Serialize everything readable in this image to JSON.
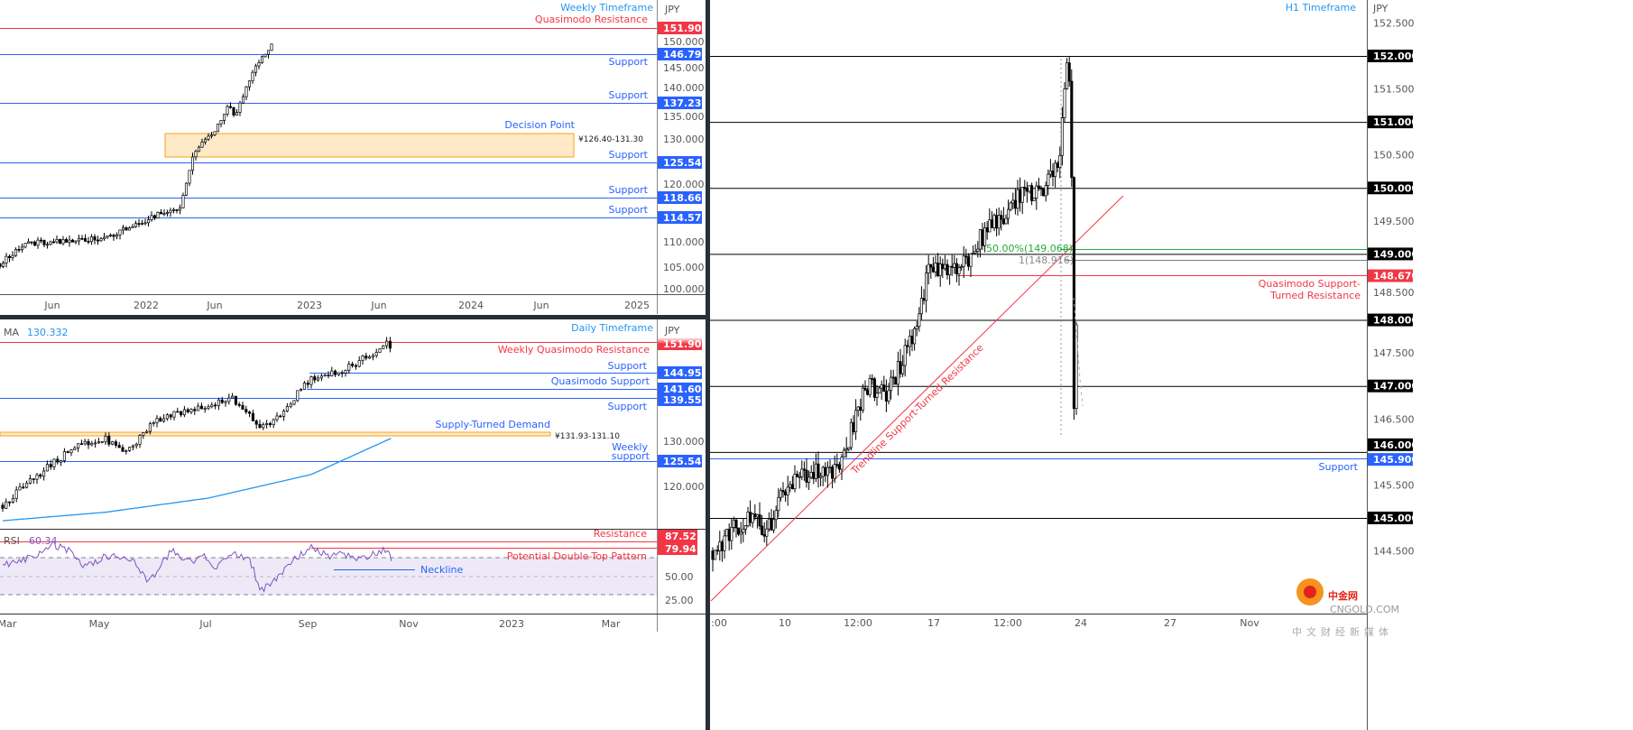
{
  "colors": {
    "support": "#2962ff",
    "resistance": "#f23645",
    "timeframe_label": "#2196f3",
    "fib": "#22ab3a",
    "ma": "#2196f3",
    "rsi": "#7e57c2",
    "zone_fill": "#ffe9c6",
    "zone_border": "#f7a21b",
    "level_black": "#000000"
  },
  "weekly": {
    "title": "Weekly Timeframe",
    "currency": "JPY",
    "annotations": {
      "quasimodo": "Quasimodo Resistance",
      "support1": "Support",
      "support2": "Support",
      "support3": "Support",
      "support4": "Support",
      "support5": "Support",
      "decision_point": "Decision Point",
      "decision_range": "¥126.40-131.30"
    },
    "levels": [
      "151.900",
      "146.790",
      "137.230",
      "125.540",
      "118.660",
      "114.570"
    ],
    "ticks": [
      "150.000",
      "145.000",
      "140.000",
      "135.000",
      "130.000",
      "120.000",
      "110.000",
      "105.000",
      "100.000"
    ],
    "dates": [
      "Jun",
      "2022",
      "Jun",
      "2023",
      "Jun",
      "2024",
      "Jun",
      "2025"
    ]
  },
  "daily": {
    "title": "Daily Timeframe",
    "currency": "JPY",
    "ma_label": "MA",
    "ma_value": "130.332",
    "annotations": {
      "weekly_qm": "Weekly Quasimodo Resistance",
      "support1": "Support",
      "qm_support": "Quasimodo Support",
      "support2": "Support",
      "supply_demand": "Supply-Turned Demand",
      "supply_range": "¥131.93-131.10",
      "weekly_support_1": "Weekly",
      "weekly_support_2": "support"
    },
    "levels": [
      "151.900",
      "144.950",
      "141.600",
      "139.550",
      "125.540"
    ],
    "ticks": [
      "130.000",
      "120.000"
    ],
    "dates": [
      "Mar",
      "May",
      "Jul",
      "Sep",
      "Nov",
      "2023",
      "Mar"
    ],
    "rsi": {
      "label": "RSI",
      "value": "60.34",
      "resistance": "Resistance",
      "pattern": "Potential Double-Top Pattern",
      "neckline": "Neckline",
      "levels": [
        "87.52",
        "79.94"
      ],
      "ticks": [
        "50.00",
        "25.00"
      ]
    }
  },
  "h1": {
    "title": "H1 Timeframe",
    "currency": "JPY",
    "annotations": {
      "qm_1": "Quasimodo Support-",
      "qm_2": "Turned Resistance",
      "support": "Support",
      "fib50": "50.00%(149.068)",
      "fib1": "1(148.916)",
      "trendline": "Trendline Support-Turned Resistance"
    },
    "levels": [
      "152.000",
      "151.000",
      "150.000",
      "149.000",
      "148.670",
      "148.000",
      "147.000",
      "146.000",
      "145.900",
      "145.000"
    ],
    "ticks": [
      "152.500",
      "151.500",
      "150.500",
      "149.500",
      "148.500",
      "147.500",
      "146.500",
      "145.500",
      "144.500"
    ],
    "dates": [
      ":00",
      "10",
      "12:00",
      "17",
      "12:00",
      "24",
      "27",
      "Nov"
    ]
  },
  "watermark": {
    "brand": "中金网",
    "url": "CNGOLD.COM",
    "slogan": "中文财经新媒体"
  },
  "chart_data": [
    {
      "type": "candlestick",
      "title": "Weekly Timeframe",
      "ylabel": "JPY",
      "ylim": [
        99,
        153
      ],
      "x_ticks": [
        "Jun",
        "2022",
        "Jun",
        "2023",
        "Jun",
        "2024",
        "Jun",
        "2025"
      ],
      "price_path_year_close": [
        [
          2021.1,
          105.5
        ],
        [
          2021.25,
          109.5
        ],
        [
          2021.5,
          110
        ],
        [
          2021.75,
          110.5
        ],
        [
          2021.95,
          113.5
        ],
        [
          2022.1,
          115.5
        ],
        [
          2022.2,
          116
        ],
        [
          2022.25,
          122
        ],
        [
          2022.3,
          128
        ],
        [
          2022.38,
          130
        ],
        [
          2022.45,
          133
        ],
        [
          2022.5,
          137
        ],
        [
          2022.55,
          134
        ],
        [
          2022.6,
          139
        ],
        [
          2022.68,
          145
        ],
        [
          2022.74,
          147
        ],
        [
          2022.78,
          149.5
        ]
      ],
      "horizontal_levels": [
        {
          "price": 151.9,
          "label": "Quasimodo Resistance"
        },
        {
          "price": 146.79,
          "label": "Support"
        },
        {
          "price": 137.23,
          "label": "Support"
        },
        {
          "price": 125.54,
          "label": "Support"
        },
        {
          "price": 118.66,
          "label": "Support"
        },
        {
          "price": 114.57,
          "label": "Support"
        }
      ],
      "zones": [
        {
          "label": "Decision Point",
          "low": 126.4,
          "high": 131.3
        }
      ]
    },
    {
      "type": "candlestick",
      "title": "Daily Timeframe",
      "ylabel": "JPY",
      "ylim": [
        112,
        152
      ],
      "x_ticks": [
        "Mar",
        "May",
        "Jul",
        "Sep",
        "Nov",
        "2023",
        "Mar"
      ],
      "price_path_month_2022_close": [
        [
          3.0,
          116
        ],
        [
          3.5,
          121
        ],
        [
          4.0,
          125
        ],
        [
          4.5,
          129
        ],
        [
          5.0,
          130
        ],
        [
          5.4,
          127
        ],
        [
          5.7,
          131
        ],
        [
          6.0,
          134
        ],
        [
          6.5,
          136
        ],
        [
          7.0,
          137
        ],
        [
          7.4,
          139
        ],
        [
          7.6,
          137
        ],
        [
          8.0,
          133
        ],
        [
          8.3,
          134
        ],
        [
          8.6,
          138
        ],
        [
          9.0,
          143
        ],
        [
          9.5,
          144
        ],
        [
          9.8,
          145.5
        ],
        [
          10.3,
          149
        ],
        [
          10.5,
          150.5
        ],
        [
          10.58,
          148
        ]
      ],
      "moving_average": {
        "label": "MA",
        "last": 130.332,
        "path": [
          [
            3.0,
            112.7
          ],
          [
            5.0,
            114.5
          ],
          [
            7.0,
            117.5
          ],
          [
            9.0,
            122.5
          ],
          [
            10.58,
            130.3
          ]
        ]
      },
      "horizontal_levels": [
        {
          "price": 151.9,
          "label": "Weekly Quasimodo Resistance"
        },
        {
          "price": 144.95,
          "label": "Support"
        },
        {
          "price": 141.6,
          "label": "Quasimodo Support"
        },
        {
          "price": 139.55,
          "label": "Support"
        },
        {
          "price": 125.54,
          "label": "Weekly support"
        }
      ],
      "zones": [
        {
          "label": "Supply-Turned Demand",
          "low": 131.1,
          "high": 131.93
        }
      ],
      "rsi": {
        "last": 60.34,
        "ylim": [
          0,
          100
        ],
        "band": [
          30,
          70
        ],
        "levels": [
          {
            "value": 87.52,
            "label": "Resistance"
          },
          {
            "value": 79.94,
            "label": "Potential Double-Top Pattern"
          }
        ],
        "path": [
          [
            3,
            62
          ],
          [
            3.5,
            70
          ],
          [
            4,
            84
          ],
          [
            4.3,
            78
          ],
          [
            4.6,
            60
          ],
          [
            5,
            72
          ],
          [
            5.5,
            70
          ],
          [
            5.8,
            45
          ],
          [
            6,
            55
          ],
          [
            6.3,
            80
          ],
          [
            6.6,
            65
          ],
          [
            6.9,
            72
          ],
          [
            7.1,
            60
          ],
          [
            7.5,
            75
          ],
          [
            7.8,
            70
          ],
          [
            8,
            35
          ],
          [
            8.3,
            45
          ],
          [
            8.6,
            65
          ],
          [
            9,
            82
          ],
          [
            9.3,
            72
          ],
          [
            9.6,
            75
          ],
          [
            9.9,
            68
          ],
          [
            10.3,
            76
          ],
          [
            10.5,
            81
          ],
          [
            10.58,
            60
          ]
        ]
      }
    },
    {
      "type": "candlestick",
      "title": "H1 Timeframe",
      "ylabel": "JPY",
      "ylim": [
        144.2,
        152.8
      ],
      "x_ticks": [
        ":00",
        "10",
        "12:00",
        "17",
        "12:00",
        "24",
        "27",
        "Nov"
      ],
      "price_path_oct_day_close": [
        [
          9.5,
          144.5
        ],
        [
          9.75,
          145.05
        ],
        [
          9.88,
          144.8
        ],
        [
          10,
          145.45
        ],
        [
          10.93,
          145.7
        ],
        [
          11.85,
          145.7
        ],
        [
          12.31,
          146.4
        ],
        [
          12.98,
          147.0
        ],
        [
          14.32,
          146.9
        ],
        [
          15.13,
          147.4
        ],
        [
          16.2,
          148.1
        ],
        [
          16.63,
          148.8
        ],
        [
          17.46,
          148.75
        ],
        [
          18.22,
          148.95
        ],
        [
          18.52,
          149.2
        ],
        [
          19.29,
          149.55
        ],
        [
          20.22,
          149.9
        ],
        [
          21.61,
          149.9
        ],
        [
          22.72,
          150.45
        ],
        [
          23.0,
          151.6
        ],
        [
          23.17,
          151.9
        ],
        [
          23.39,
          151.2
        ],
        [
          23.5,
          148.5
        ],
        [
          23.56,
          146.4
        ],
        [
          23.67,
          148.2
        ],
        [
          23.83,
          147.1
        ]
      ],
      "horizontal_levels": [
        {
          "price": 152
        },
        {
          "price": 151
        },
        {
          "price": 150
        },
        {
          "price": 149
        },
        {
          "price": 148.67,
          "label": "Quasimodo Support-Turned Resistance"
        },
        {
          "price": 148
        },
        {
          "price": 147
        },
        {
          "price": 146
        },
        {
          "price": 145.9,
          "label": "Support"
        },
        {
          "price": 145
        }
      ],
      "fibonacci": [
        {
          "label": "50.00%",
          "price": 149.068
        },
        {
          "label": "1",
          "price": 148.916
        }
      ],
      "trendline": {
        "label": "Trendline Support-Turned Resistance",
        "from": [
          9.5,
          144.3
        ],
        "to": [
          25,
          149.85
        ]
      }
    }
  ]
}
